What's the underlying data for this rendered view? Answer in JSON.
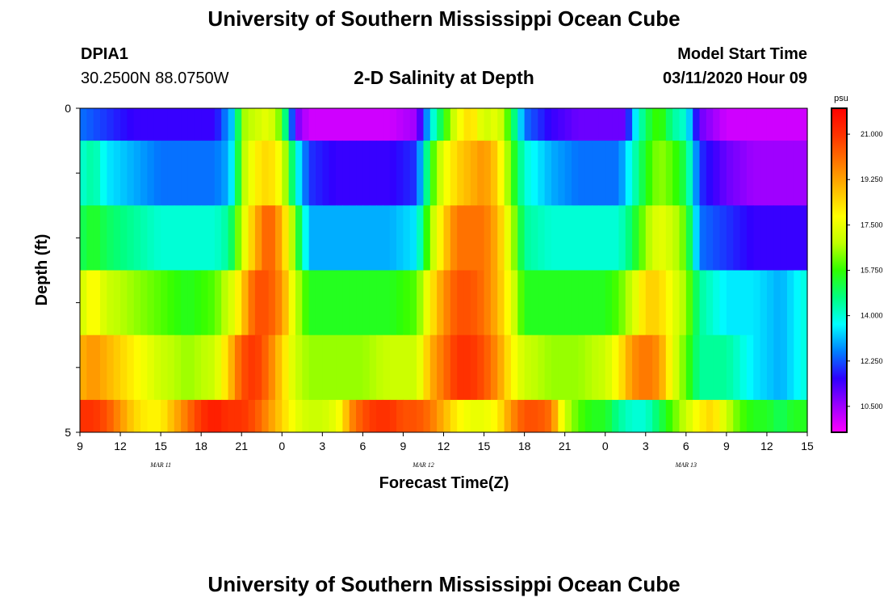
{
  "header": {
    "title": "University of Southern Mississippi Ocean Cube",
    "station_id": "DPIA1",
    "station_coords": "30.2500N 88.0750W",
    "start_label": "Model Start Time",
    "start_value": "03/11/2020 Hour 09",
    "footer_title": "University of Southern Mississippi Ocean Cube"
  },
  "chart_data": {
    "type": "heatmap",
    "title": "2-D Salinity at Depth",
    "xlabel": "Forecast Time(Z)",
    "ylabel": "Depth (ft)",
    "y_range": [
      0,
      5
    ],
    "y_tick_labels": [
      "0",
      "5"
    ],
    "x_tick_labels": [
      "9",
      "12",
      "15",
      "18",
      "21",
      "0",
      "3",
      "6",
      "9",
      "12",
      "15",
      "18",
      "21",
      "0",
      "3",
      "6",
      "9",
      "12",
      "15"
    ],
    "date_labels": [
      "MAR 11",
      "MAR 12",
      "MAR 13"
    ],
    "colorbar": {
      "unit": "psu",
      "range": [
        9.5,
        22.0
      ],
      "tick_labels": [
        "21.000",
        "19.250",
        "17.500",
        "15.750",
        "14.000",
        "12.250",
        "10.500"
      ],
      "colors": [
        "#ff00ff",
        "#9b00ff",
        "#2e00ff",
        "#0080ff",
        "#00ffff",
        "#00ff80",
        "#30ff00",
        "#bfff00",
        "#ffff00",
        "#ffbb00",
        "#ff7700",
        "#ff3300",
        "#ff0000"
      ]
    },
    "depth_rows": 6,
    "hours_start": 0,
    "hours_end": 54,
    "rows": [
      {
        "label": "0.0-0.5 ft",
        "keys": [
          [
            0,
            12.5
          ],
          [
            2,
            12.0
          ],
          [
            4,
            11.5
          ],
          [
            6,
            11.5
          ],
          [
            8,
            11.5
          ],
          [
            10,
            11.5
          ],
          [
            11.5,
            13.5
          ],
          [
            12,
            16.5
          ],
          [
            13,
            17.0
          ],
          [
            14,
            17.5
          ],
          [
            15,
            16.0
          ],
          [
            16,
            11.0
          ],
          [
            17,
            10.0
          ],
          [
            19,
            10.0
          ],
          [
            21,
            10.0
          ],
          [
            23,
            10.0
          ],
          [
            25,
            10.5
          ],
          [
            26,
            13.5
          ],
          [
            27,
            15.5
          ],
          [
            28,
            17.5
          ],
          [
            29,
            18.5
          ],
          [
            30,
            17.0
          ],
          [
            31,
            17.5
          ],
          [
            32,
            15.5
          ],
          [
            33,
            12.5
          ],
          [
            35,
            11.5
          ],
          [
            37,
            11.0
          ],
          [
            39,
            11.0
          ],
          [
            40.5,
            11.0
          ],
          [
            41,
            13.0
          ],
          [
            42,
            15.0
          ],
          [
            43,
            16.0
          ],
          [
            44,
            14.5
          ],
          [
            45,
            14.0
          ],
          [
            46,
            11.0
          ],
          [
            48,
            10.0
          ],
          [
            50,
            10.0
          ],
          [
            52,
            10.0
          ],
          [
            53,
            10.0
          ],
          [
            54,
            10.0
          ]
        ]
      },
      {
        "label": "0.5-1.5 ft",
        "keys": [
          [
            0,
            14.0
          ],
          [
            1,
            14.5
          ],
          [
            2,
            13.5
          ],
          [
            4,
            13.0
          ],
          [
            6,
            12.5
          ],
          [
            8,
            12.5
          ],
          [
            10,
            12.5
          ],
          [
            11,
            13.0
          ],
          [
            11.5,
            14.0
          ],
          [
            12,
            16.5
          ],
          [
            13,
            18.0
          ],
          [
            14,
            18.5
          ],
          [
            15,
            17.5
          ],
          [
            16,
            14.0
          ],
          [
            17,
            12.0
          ],
          [
            19,
            11.5
          ],
          [
            21,
            11.5
          ],
          [
            23,
            11.5
          ],
          [
            25,
            12.0
          ],
          [
            26,
            15.5
          ],
          [
            27,
            17.5
          ],
          [
            28,
            18.5
          ],
          [
            29,
            19.0
          ],
          [
            30,
            19.5
          ],
          [
            31,
            18.5
          ],
          [
            32,
            16.0
          ],
          [
            33,
            14.0
          ],
          [
            35,
            13.0
          ],
          [
            37,
            12.5
          ],
          [
            39,
            12.5
          ],
          [
            40,
            12.5
          ],
          [
            41,
            14.0
          ],
          [
            42,
            15.5
          ],
          [
            43,
            16.5
          ],
          [
            44,
            16.0
          ],
          [
            45,
            15.0
          ],
          [
            46,
            12.0
          ],
          [
            48,
            11.0
          ],
          [
            50,
            10.5
          ],
          [
            52,
            10.5
          ],
          [
            53,
            10.5
          ],
          [
            54,
            10.5
          ]
        ]
      },
      {
        "label": "1.5-2.5 ft",
        "keys": [
          [
            0,
            15.0
          ],
          [
            1,
            15.5
          ],
          [
            2,
            15.0
          ],
          [
            4,
            14.5
          ],
          [
            6,
            14.0
          ],
          [
            8,
            14.0
          ],
          [
            10,
            14.0
          ],
          [
            11,
            14.5
          ],
          [
            11.5,
            15.5
          ],
          [
            12,
            17.0
          ],
          [
            13,
            19.0
          ],
          [
            14,
            20.5
          ],
          [
            15,
            19.0
          ],
          [
            16,
            16.0
          ],
          [
            17,
            13.0
          ],
          [
            19,
            13.0
          ],
          [
            21,
            13.0
          ],
          [
            23,
            13.0
          ],
          [
            25,
            13.5
          ],
          [
            26,
            16.5
          ],
          [
            27,
            18.5
          ],
          [
            28,
            20.0
          ],
          [
            29,
            20.0
          ],
          [
            30,
            20.0
          ],
          [
            31,
            19.0
          ],
          [
            32,
            17.0
          ],
          [
            33,
            14.5
          ],
          [
            35,
            14.0
          ],
          [
            37,
            14.0
          ],
          [
            39,
            14.0
          ],
          [
            40,
            14.0
          ],
          [
            41,
            15.0
          ],
          [
            42,
            16.5
          ],
          [
            43,
            17.5
          ],
          [
            44,
            17.0
          ],
          [
            45,
            16.0
          ],
          [
            46,
            12.5
          ],
          [
            48,
            12.0
          ],
          [
            50,
            11.5
          ],
          [
            52,
            11.5
          ],
          [
            53,
            11.5
          ],
          [
            54,
            11.5
          ]
        ]
      },
      {
        "label": "2.5-3.5 ft",
        "keys": [
          [
            0,
            17.0
          ],
          [
            1,
            18.0
          ],
          [
            2,
            17.0
          ],
          [
            4,
            16.5
          ],
          [
            6,
            16.0
          ],
          [
            8,
            15.5
          ],
          [
            10,
            16.0
          ],
          [
            11,
            17.0
          ],
          [
            11.5,
            17.5
          ],
          [
            12,
            18.5
          ],
          [
            13,
            20.5
          ],
          [
            14,
            20.5
          ],
          [
            15,
            19.5
          ],
          [
            16,
            17.0
          ],
          [
            17,
            15.5
          ],
          [
            19,
            15.5
          ],
          [
            21,
            15.5
          ],
          [
            23,
            15.5
          ],
          [
            25,
            16.0
          ],
          [
            26,
            18.0
          ],
          [
            27,
            19.5
          ],
          [
            28,
            20.5
          ],
          [
            29,
            20.5
          ],
          [
            30,
            20.0
          ],
          [
            31,
            19.0
          ],
          [
            32,
            17.5
          ],
          [
            33,
            15.5
          ],
          [
            35,
            15.5
          ],
          [
            37,
            15.5
          ],
          [
            39,
            15.5
          ],
          [
            40,
            16.0
          ],
          [
            41,
            17.0
          ],
          [
            42,
            18.5
          ],
          [
            43,
            18.5
          ],
          [
            44,
            17.5
          ],
          [
            45,
            16.5
          ],
          [
            46,
            14.5
          ],
          [
            48,
            13.5
          ],
          [
            50,
            13.5
          ],
          [
            52,
            13.0
          ],
          [
            53,
            13.5
          ],
          [
            54,
            14.0
          ]
        ]
      },
      {
        "label": "3.5-4.5 ft",
        "keys": [
          [
            0,
            19.0
          ],
          [
            1,
            19.5
          ],
          [
            2,
            19.0
          ],
          [
            4,
            18.0
          ],
          [
            6,
            17.0
          ],
          [
            8,
            16.5
          ],
          [
            10,
            17.0
          ],
          [
            11,
            18.5
          ],
          [
            11.5,
            19.5
          ],
          [
            12,
            20.5
          ],
          [
            13,
            21.0
          ],
          [
            14,
            20.0
          ],
          [
            15,
            18.5
          ],
          [
            16,
            17.0
          ],
          [
            17,
            16.5
          ],
          [
            19,
            16.5
          ],
          [
            21,
            16.5
          ],
          [
            23,
            17.0
          ],
          [
            25,
            17.0
          ],
          [
            26,
            19.0
          ],
          [
            27,
            20.0
          ],
          [
            28,
            21.0
          ],
          [
            29,
            21.0
          ],
          [
            30,
            20.5
          ],
          [
            31,
            19.5
          ],
          [
            32,
            18.0
          ],
          [
            33,
            17.0
          ],
          [
            35,
            16.5
          ],
          [
            37,
            16.5
          ],
          [
            39,
            17.0
          ],
          [
            40,
            18.0
          ],
          [
            41,
            19.5
          ],
          [
            42,
            20.0
          ],
          [
            43,
            19.5
          ],
          [
            44,
            17.5
          ],
          [
            45,
            16.0
          ],
          [
            46,
            14.5
          ],
          [
            48,
            14.5
          ],
          [
            50,
            13.5
          ],
          [
            52,
            13.0
          ],
          [
            53,
            13.5
          ],
          [
            54,
            14.0
          ]
        ]
      },
      {
        "label": "4.5-5.0 ft",
        "keys": [
          [
            0,
            21.0
          ],
          [
            1,
            21.0
          ],
          [
            2,
            20.5
          ],
          [
            3,
            19.5
          ],
          [
            4,
            18.5
          ],
          [
            5,
            18.0
          ],
          [
            6,
            18.0
          ],
          [
            7,
            19.0
          ],
          [
            8,
            20.0
          ],
          [
            9,
            21.0
          ],
          [
            10,
            21.5
          ],
          [
            11,
            21.0
          ],
          [
            12,
            21.0
          ],
          [
            13,
            20.5
          ],
          [
            14,
            19.5
          ],
          [
            15,
            18.5
          ],
          [
            16,
            17.5
          ],
          [
            17,
            17.0
          ],
          [
            18,
            17.0
          ],
          [
            19,
            17.5
          ],
          [
            19.5,
            18.0
          ],
          [
            20,
            19.5
          ],
          [
            21,
            20.5
          ],
          [
            22,
            21.0
          ],
          [
            23,
            21.0
          ],
          [
            24,
            20.5
          ],
          [
            25,
            20.5
          ],
          [
            26,
            20.0
          ],
          [
            27,
            19.0
          ],
          [
            28,
            18.0
          ],
          [
            29,
            17.5
          ],
          [
            30,
            17.5
          ],
          [
            31,
            18.0
          ],
          [
            32,
            19.5
          ],
          [
            33,
            20.5
          ],
          [
            34,
            20.5
          ],
          [
            35,
            20.0
          ],
          [
            36,
            17.0
          ],
          [
            37,
            16.0
          ],
          [
            38,
            15.5
          ],
          [
            39,
            15.5
          ],
          [
            40,
            14.5
          ],
          [
            41,
            14.0
          ],
          [
            42,
            14.0
          ],
          [
            43,
            15.0
          ],
          [
            44,
            16.0
          ],
          [
            45,
            17.0
          ],
          [
            46,
            18.0
          ],
          [
            47,
            18.5
          ],
          [
            48,
            17.0
          ],
          [
            49,
            16.0
          ],
          [
            50,
            15.5
          ],
          [
            51,
            15.5
          ],
          [
            52,
            15.0
          ],
          [
            53,
            15.5
          ],
          [
            54,
            15.5
          ]
        ]
      }
    ]
  }
}
